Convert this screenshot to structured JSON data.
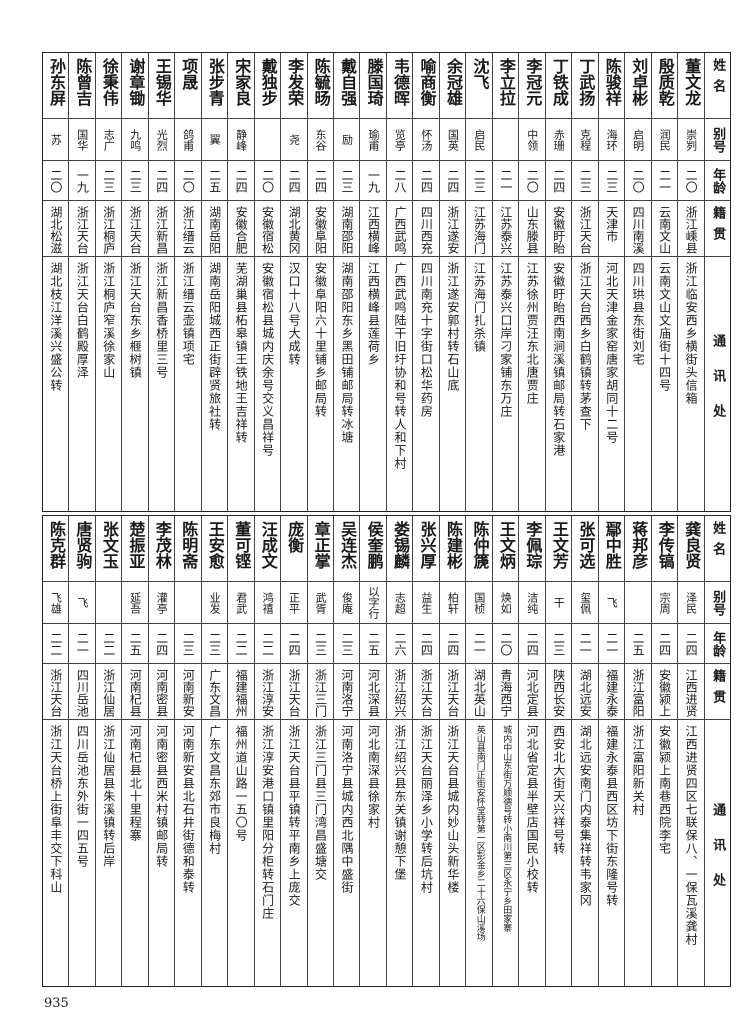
{
  "header": {
    "name": "姓名",
    "alias": "别号",
    "age": "年龄",
    "native": "籍贯",
    "address": "通讯处"
  },
  "top_rows": [
    {
      "name": "董文龙",
      "alias": "崇刿",
      "age": "二〇",
      "native": "浙江嵊县",
      "address": "浙江临安西乡横街头信箱"
    },
    {
      "name": "殷质乾",
      "alias": "润民",
      "age": "二一",
      "native": "云南文山",
      "address": "云南文山文庙街十四号"
    },
    {
      "name": "刘卓彬",
      "alias": "启明",
      "age": "二〇",
      "native": "四川南溪",
      "address": "四川珙县东街刘宅"
    },
    {
      "name": "陈骏祥",
      "alias": "海环",
      "age": "二三",
      "native": "天津市",
      "address": "河北天津金家窑唐家胡同十二号"
    },
    {
      "name": "丁武扬",
      "alias": "克程",
      "age": "二三",
      "native": "浙江天台",
      "address": "浙江天台西乡白鹤镇转茅查下"
    },
    {
      "name": "丁铁成",
      "alias": "赤珊",
      "age": "二四",
      "native": "安徽盱眙",
      "address": "安徽盱眙西南涧溪镇邮局转石家港"
    },
    {
      "name": "李冠元",
      "alias": "中领",
      "age": "二〇",
      "native": "山东滕县",
      "address": "江苏徐州贾汪东北唐贾庄"
    },
    {
      "name": "李立拉",
      "alias": "",
      "age": "二一",
      "native": "江苏泰兴",
      "address": "江苏泰兴口岸刁家铺东万庄"
    },
    {
      "name": "沈飞",
      "alias": "启民",
      "age": "二三",
      "native": "江苏海门",
      "address": "江苏海门扎杀镇"
    },
    {
      "name": "余冠雄",
      "alias": "国英",
      "age": "二四",
      "native": "浙江遂安",
      "address": "浙江遂安郭村转石山底"
    },
    {
      "name": "喻商衡",
      "alias": "怀汤",
      "age": "二四",
      "native": "四川西充",
      "address": "四川南充十字街口松华药房"
    },
    {
      "name": "韦德晖",
      "alias": "览亭",
      "age": "二八",
      "native": "广西武鸣",
      "address": "广西武鸣陆干旧圩协和号转人和下村"
    },
    {
      "name": "滕国琦",
      "alias": "瑜甫",
      "age": "一九",
      "native": "江西横峰",
      "address": "江西横峰县莲荷乡"
    },
    {
      "name": "戴自强",
      "alias": "励",
      "age": "二三",
      "native": "湖南邵阳",
      "address": "湖南邵阳东乡黑田铺邮局转冰塘"
    },
    {
      "name": "陈毓旸",
      "alias": "东谷",
      "age": "二四",
      "native": "安徽阜阳",
      "address": "安徽阜阳六十里铺乡邮局转"
    },
    {
      "name": "李发荣",
      "alias": "尧",
      "age": "二四",
      "native": "湖北黄冈",
      "address": "汉口十八号大成转"
    },
    {
      "name": "戴独步",
      "alias": "",
      "age": "二〇",
      "native": "安徽宿松",
      "address": "安徽宿松县城内庆余号交义昌祥号"
    },
    {
      "name": "宋家良",
      "alias": "静峰",
      "age": "二四",
      "native": "安徽合肥",
      "address": "芜湖巢县柘皋镇王铁地王吉祥转"
    },
    {
      "name": "张步青",
      "alias": "翼",
      "age": "二五",
      "native": "湖南岳阳",
      "address": "湖南岳阳城西正街辟贤旅社转"
    },
    {
      "name": "项晟",
      "alias": "鸽甫",
      "age": "二〇",
      "native": "浙江缙云",
      "address": "浙江缙云壶镇项宅"
    },
    {
      "name": "王锡华",
      "alias": "光烈",
      "age": "二四",
      "native": "浙江新昌",
      "address": "浙江新昌香桥里三号"
    },
    {
      "name": "谢章锄",
      "alias": "九鸣",
      "age": "二三",
      "native": "浙江天台",
      "address": "浙江天台东乡榧树镇"
    },
    {
      "name": "徐秉伟",
      "alias": "志广",
      "age": "二三",
      "native": "浙江桐庐",
      "address": "浙江桐庐窄溪徐家山"
    },
    {
      "name": "陈曾吉",
      "alias": "国华",
      "age": "一九",
      "native": "浙江天台",
      "address": "浙江天台白鹤殿厚泽"
    },
    {
      "name": "孙东屏",
      "alias": "苏",
      "age": "二〇",
      "native": "湖北松滋",
      "address": "湖北枝江洋溪兴盛公转"
    }
  ],
  "bottom_rows": [
    {
      "name": "龚良贤",
      "alias": "泽民",
      "age": "二四",
      "native": "江西进贤",
      "address": "江西进贤四区七联保八、一保瓦溪龚村"
    },
    {
      "name": "李传镐",
      "alias": "宗周",
      "age": "二四",
      "native": "安徽颍上",
      "address": "安徽颍上南巷西院李宅"
    },
    {
      "name": "蒋邦彦",
      "alias": "",
      "age": "二五",
      "native": "浙江富阳",
      "address": "浙江富阳新关村"
    },
    {
      "name": "鄢中胜",
      "alias": "飞",
      "age": "二一",
      "native": "福建永泰",
      "address": "福建永泰县西区坊下街东隆号转"
    },
    {
      "name": "张可选",
      "alias": "玺佩",
      "age": "二一",
      "native": "湖北远安",
      "address": "湖北远安南门内泰集祥转韦家冈"
    },
    {
      "name": "王文芳",
      "alias": "干",
      "age": "二三",
      "native": "陕西长安",
      "address": "西安北大街天兴祥号转"
    },
    {
      "name": "李佩琮",
      "alias": "洁纯",
      "age": "二四",
      "native": "河北定县",
      "address": "河北省定县半壁店国民小校转"
    },
    {
      "name": "王文炳",
      "alias": "焕如",
      "age": "二〇",
      "native": "青海西宁",
      "address": "城内中山东街万顺德号转小南川第三区永宁乡田家寨"
    },
    {
      "name": "陈仲篪",
      "alias": "国桢",
      "age": "二一",
      "native": "湖北英山",
      "address": "英山县南门正街安怀堂转第一区彭金乡二十六保山溪场"
    },
    {
      "name": "陈建彬",
      "alias": "柏轩",
      "age": "二四",
      "native": "浙江天台",
      "address": "浙江天台县城内妙山头新华楼"
    },
    {
      "name": "张兴厚",
      "alias": "益生",
      "age": "二四",
      "native": "浙江天台",
      "address": "浙江天台丽泽乡小学转后坑村"
    },
    {
      "name": "娄锡麟",
      "alias": "志超",
      "age": "二六",
      "native": "浙江绍兴",
      "address": "浙江绍兴县东关镇谢憩下堡"
    },
    {
      "name": "侯奎鹏",
      "alias": "以字行",
      "age": "二五",
      "native": "河北深县",
      "address": "河北南深县徐家村"
    },
    {
      "name": "吴连杰",
      "alias": "俊庵",
      "age": "二三",
      "native": "河南洛宁",
      "address": "河南洛宁县城内西北隅中盛街"
    },
    {
      "name": "章正掌",
      "alias": "武胥",
      "age": "二三",
      "native": "浙江三门",
      "address": "浙江三门县三门湾昌盛塘交"
    },
    {
      "name": "庞衡",
      "alias": "正平",
      "age": "二四",
      "native": "浙江天台",
      "address": "浙江天台县平镇转平南乡上庞交"
    },
    {
      "name": "汪成文",
      "alias": "鸿禧",
      "age": "二二",
      "native": "浙江淳安",
      "address": "浙江淳安港口镇里阳分柜转石门庄"
    },
    {
      "name": "董可铿",
      "alias": "君武",
      "age": "二二",
      "native": "福建福州",
      "address": "福州道山路一五〇号"
    },
    {
      "name": "王安愈",
      "alias": "业发",
      "age": "二三",
      "native": "广东文昌",
      "address": "广东文昌东郊市良梅村"
    },
    {
      "name": "陈明斋",
      "alias": "",
      "age": "二三",
      "native": "河南新安",
      "address": "河南新安县北石井街德和泰转"
    },
    {
      "name": "李茂林",
      "alias": "灌亭",
      "age": "二四",
      "native": "河南密县",
      "address": "河南密县西米村镇邮局转"
    },
    {
      "name": "楚振亚",
      "alias": "延吾",
      "age": "二五",
      "native": "河南杞县",
      "address": "河南杞县北十里程寨"
    },
    {
      "name": "张文玉",
      "alias": "",
      "age": "二二",
      "native": "浙江仙居",
      "address": "浙江仙居县朱溪镇转后岸"
    },
    {
      "name": "唐贤驹",
      "alias": "飞",
      "age": "二一",
      "native": "四川岳池",
      "address": "四川岳池东外街一四五号"
    },
    {
      "name": "陈克群",
      "alias": "飞雄",
      "age": "二二",
      "native": "浙江天台",
      "address": "浙江天台桥上街阜丰交下科山"
    }
  ],
  "page_number": "935"
}
